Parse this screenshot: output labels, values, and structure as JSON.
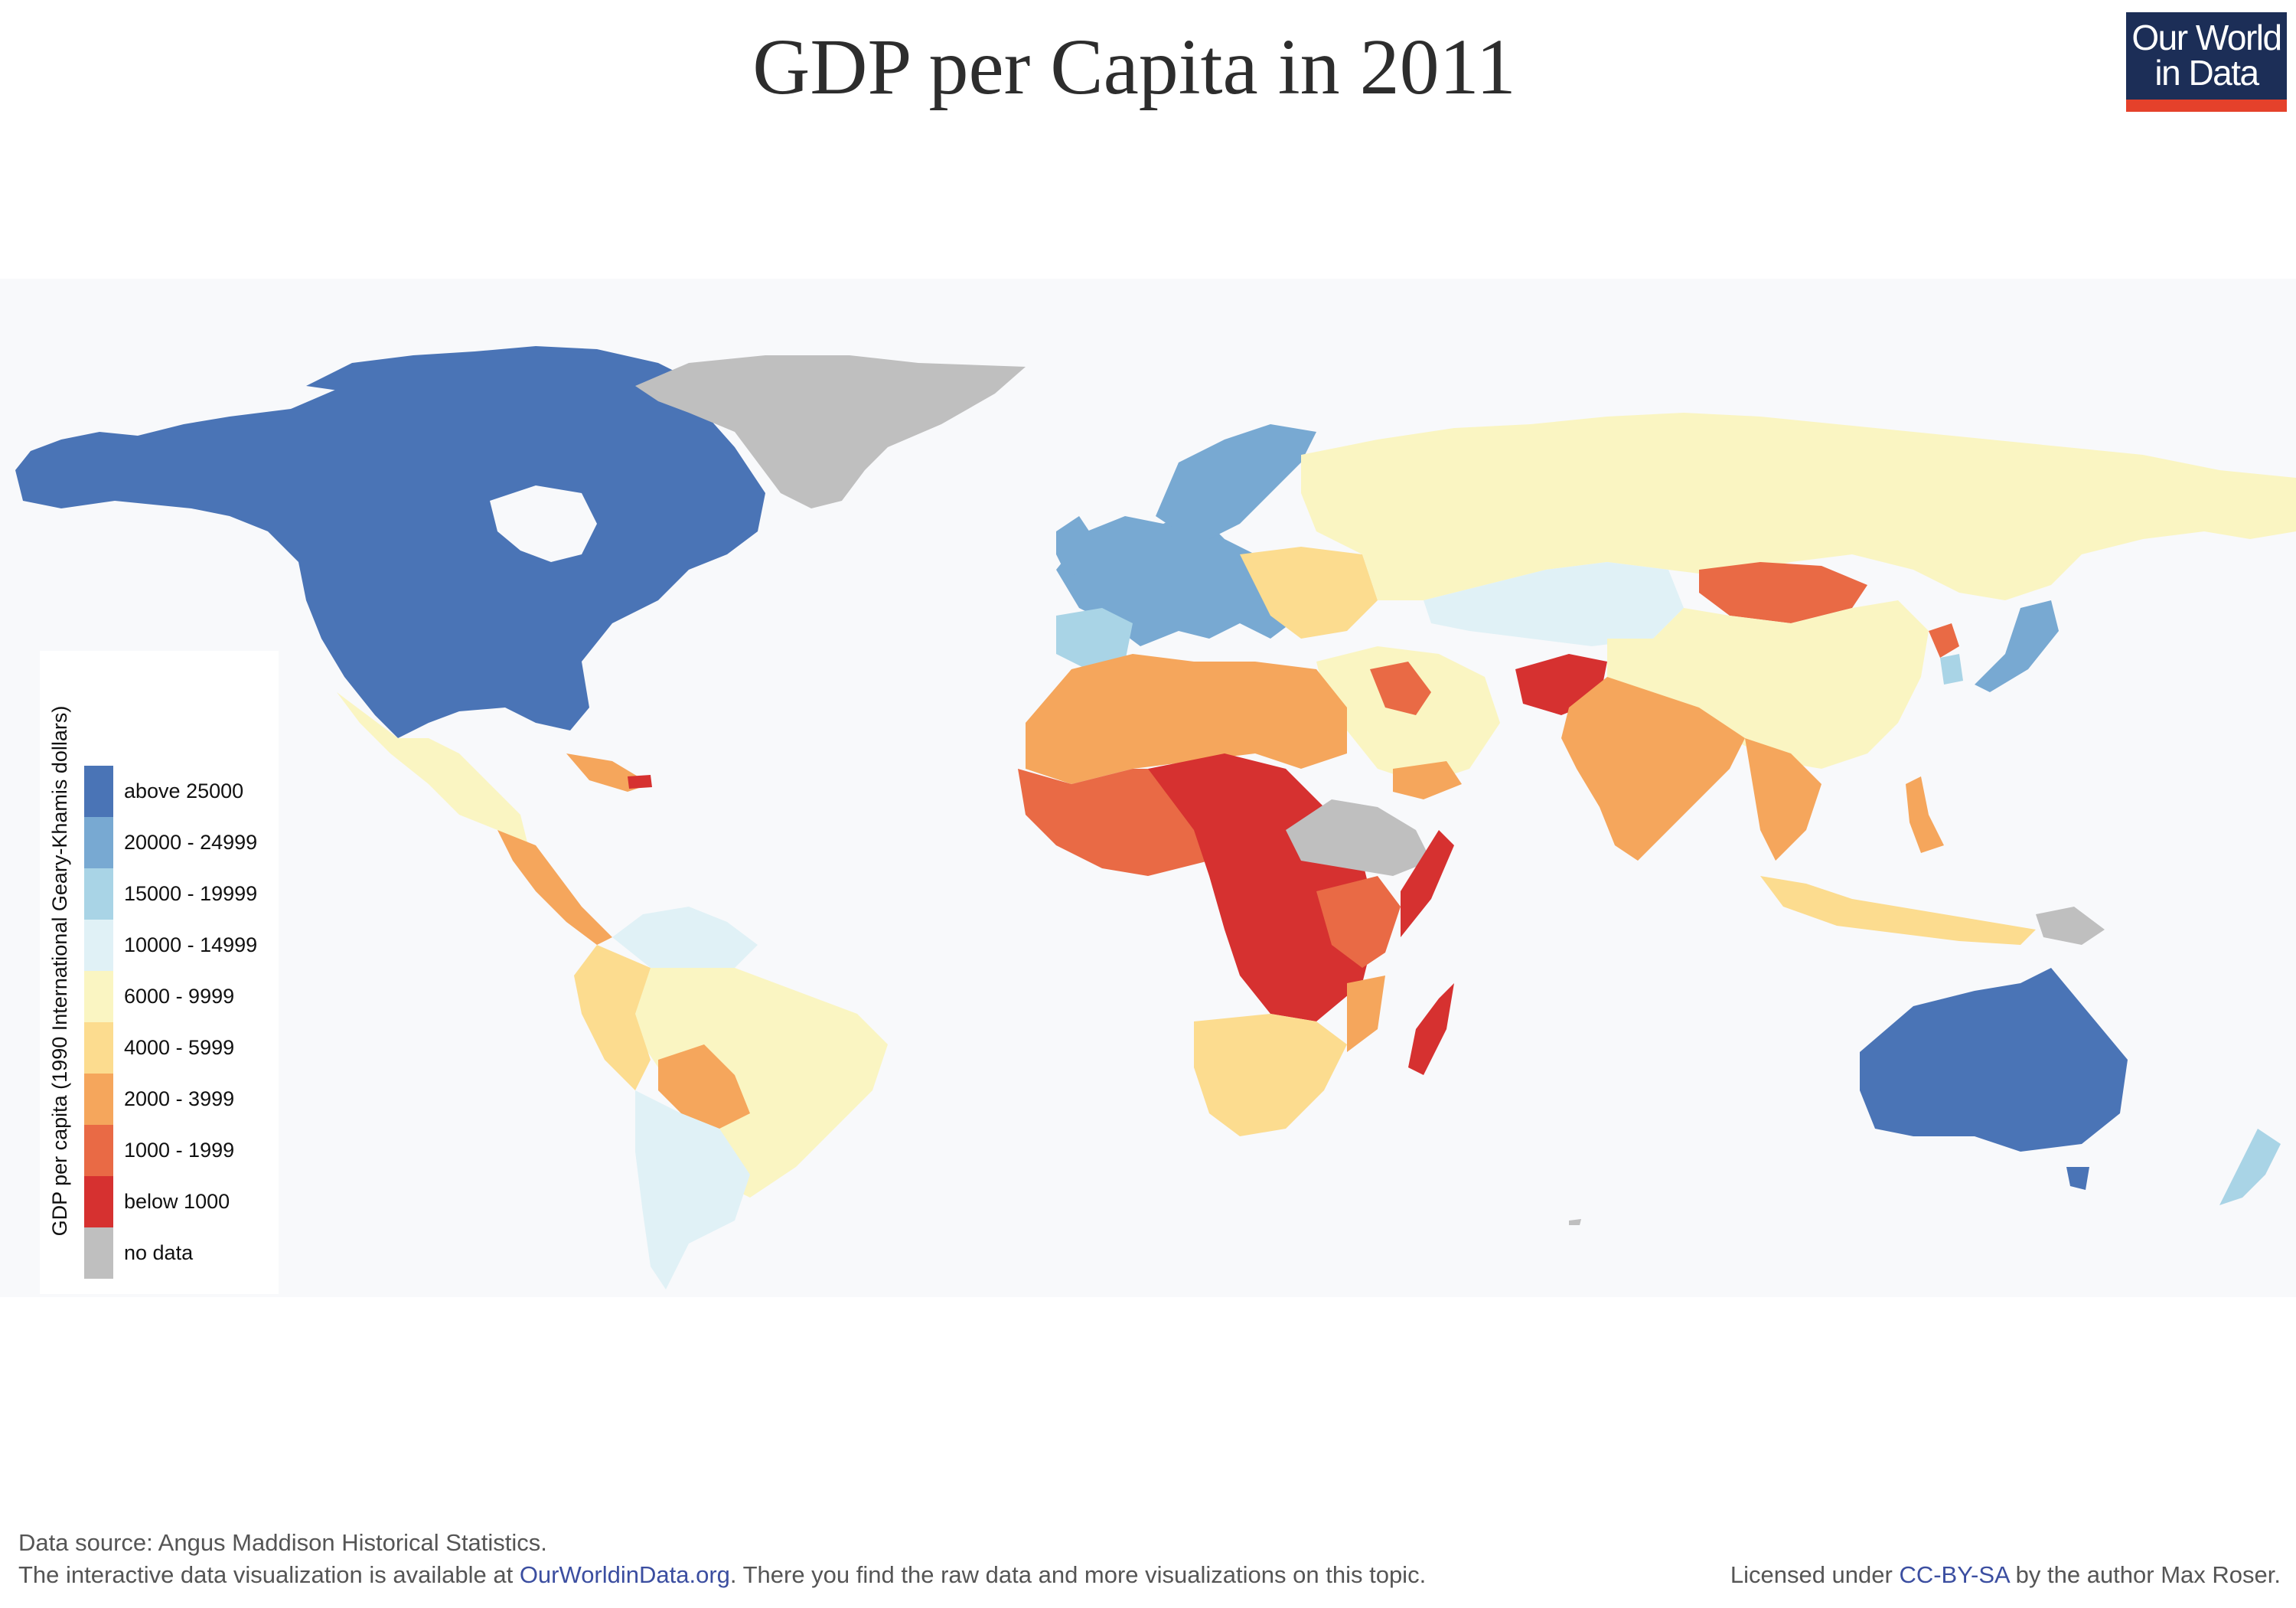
{
  "title": "GDP per Capita in 2011",
  "logo": {
    "line1": "Our World",
    "line2": "in Data",
    "bg_color": "#1c2e57",
    "accent_color": "#e5412b"
  },
  "legend": {
    "title": "GDP per capita (1990 International Geary-Khamis dollars)",
    "items": [
      {
        "label": "above 25000",
        "color": "#4a74b6"
      },
      {
        "label": "20000 - 24999",
        "color": "#78a9d2"
      },
      {
        "label": "15000 - 19999",
        "color": "#a9d4e6"
      },
      {
        "label": "10000 - 14999",
        "color": "#e0f1f6"
      },
      {
        "label": "6000 - 9999",
        "color": "#faf5c2"
      },
      {
        "label": "4000 - 5999",
        "color": "#fcdc8f"
      },
      {
        "label": "2000 - 3999",
        "color": "#f5a65c"
      },
      {
        "label": "1000 - 1999",
        "color": "#e96a45"
      },
      {
        "label": "below 1000",
        "color": "#d63130"
      },
      {
        "label": "no data",
        "color": "#bfbfbf"
      }
    ]
  },
  "map": {
    "regions": [
      {
        "name": "North America",
        "class": "above 25000"
      },
      {
        "name": "Greenland",
        "class": "no data"
      },
      {
        "name": "Mexico",
        "class": "6000 - 9999"
      },
      {
        "name": "Central America",
        "class": "2000 - 3999"
      },
      {
        "name": "Brazil",
        "class": "6000 - 9999"
      },
      {
        "name": "Bolivia",
        "class": "2000 - 3999"
      },
      {
        "name": "Argentina and Chile",
        "class": "10000 - 14999"
      },
      {
        "name": "Western Europe",
        "class": "20000 - 24999"
      },
      {
        "name": "Russia",
        "class": "6000 - 9999"
      },
      {
        "name": "Kazakhstan",
        "class": "10000 - 14999"
      },
      {
        "name": "China",
        "class": "6000 - 9999"
      },
      {
        "name": "Mongolia",
        "class": "1000 - 1999"
      },
      {
        "name": "India",
        "class": "2000 - 3999"
      },
      {
        "name": "Afghanistan",
        "class": "below 1000"
      },
      {
        "name": "Japan",
        "class": "20000 - 24999"
      },
      {
        "name": "Indonesia",
        "class": "4000 - 5999"
      },
      {
        "name": "Australia",
        "class": "above 25000"
      },
      {
        "name": "New Zealand",
        "class": "15000 - 19999"
      },
      {
        "name": "North Africa",
        "class": "2000 - 3999"
      },
      {
        "name": "Central Africa",
        "class": "below 1000"
      },
      {
        "name": "Southern Africa",
        "class": "4000 - 5999"
      },
      {
        "name": "Madagascar",
        "class": "below 1000"
      },
      {
        "name": "Horn of Africa",
        "class": "no data"
      }
    ]
  },
  "footer": {
    "source": "Data source: Angus Maddison Historical Statistics.",
    "interactive_prefix": "The interactive data visualization is available at ",
    "interactive_link": "OurWorldinData.org",
    "interactive_suffix": ". There you find the raw data and more visualizations on this topic.",
    "license_prefix": "Licensed under ",
    "license_link": "CC-BY-SA",
    "license_suffix": " by the author Max Roser."
  }
}
